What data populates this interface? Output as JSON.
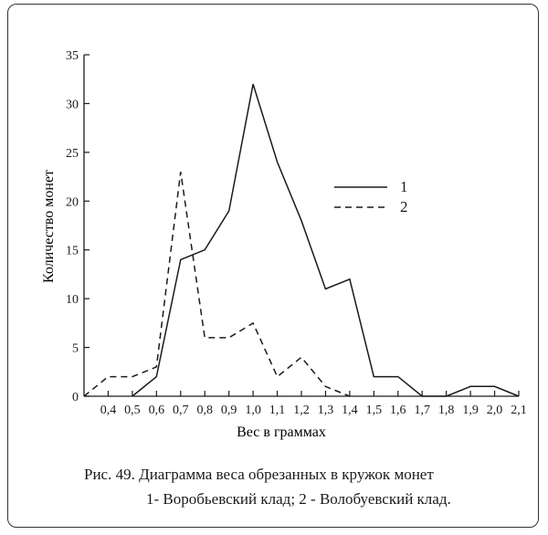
{
  "chart_data": {
    "type": "line",
    "xlabel": "Вес в граммах",
    "ylabel": "Количество монет",
    "x_ticks": [
      "0,4",
      "0,5",
      "0,6",
      "0,7",
      "0,8",
      "0,9",
      "1,0",
      "1,1",
      "1,2",
      "1,3",
      "1,4",
      "1,5",
      "1,6",
      "1,7",
      "1,8",
      "1,9",
      "2,0",
      "2,1"
    ],
    "x_range": [
      0.3,
      2.1
    ],
    "y_ticks": [
      0,
      5,
      10,
      15,
      20,
      25,
      30,
      35
    ],
    "ylim": [
      0,
      35
    ],
    "series": [
      {
        "name": "1",
        "style": "solid",
        "x": [
          0.5,
          0.6,
          0.7,
          0.8,
          0.9,
          1.0,
          1.1,
          1.2,
          1.3,
          1.4,
          1.5,
          1.6,
          1.7,
          1.8,
          1.9,
          2.0,
          2.1
        ],
        "y": [
          0,
          2,
          14,
          15,
          19,
          32,
          24,
          18,
          11,
          12,
          2,
          2,
          0,
          0,
          1,
          1,
          0
        ]
      },
      {
        "name": "2",
        "style": "dashed",
        "x": [
          0.3,
          0.4,
          0.5,
          0.6,
          0.7,
          0.8,
          0.9,
          1.0,
          1.1,
          1.2,
          1.3,
          1.4
        ],
        "y": [
          0,
          2,
          2,
          3,
          23,
          6,
          6,
          7.5,
          2,
          4,
          1,
          0
        ]
      }
    ],
    "legend_placement": "right"
  },
  "caption": {
    "line1": "Рис. 49. Диаграмма веса обрезанных в кружок монет",
    "line2": "1- Воробьевский клад; 2 - Волобуевский клад."
  },
  "colors": {
    "line": "#1a1a1a",
    "frame": "#333333"
  }
}
